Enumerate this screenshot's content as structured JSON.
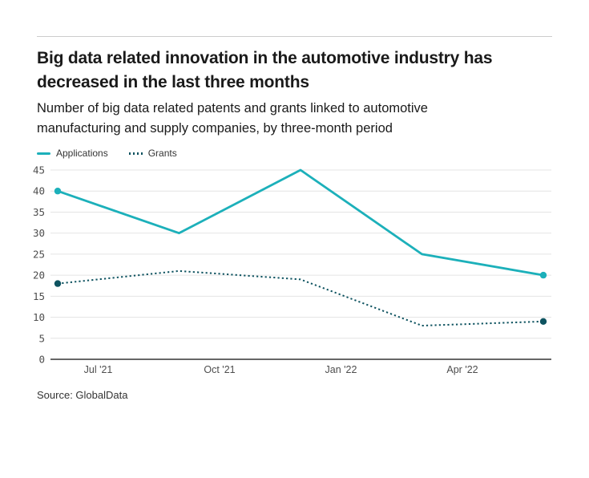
{
  "header": {
    "title": "Big data related innovation in the automotive industry has decreased in the last three months",
    "subtitle": "Number of big data related patents and grants linked to automotive manufacturing and supply companies, by three-month period"
  },
  "legend": {
    "items": [
      {
        "label": "Applications",
        "color": "#1cb0ba",
        "style": "solid"
      },
      {
        "label": "Grants",
        "color": "#0e5360",
        "style": "dotted"
      }
    ]
  },
  "chart_data": {
    "type": "line",
    "title": "Big data related innovation in the automotive industry has decreased in the last three months",
    "subtitle": "Number of big data related patents and grants linked to automotive manufacturing and supply companies, by three-month period",
    "x_axis": {
      "domain_months": [
        0,
        12
      ],
      "point_month_positions": [
        0,
        3,
        6,
        9,
        12
      ],
      "tick_month_positions": [
        1,
        4,
        7,
        10
      ],
      "tick_labels": [
        "Jul '21",
        "Oct '21",
        "Jan '22",
        "Apr '22"
      ]
    },
    "y_axis": {
      "ticks": [
        0,
        5,
        10,
        15,
        20,
        25,
        30,
        35,
        40,
        45
      ],
      "ylim": [
        0,
        45
      ]
    },
    "series": [
      {
        "name": "Applications",
        "values": [
          40,
          30,
          45,
          25,
          20
        ],
        "color": "#1cb0ba",
        "line_style": "solid",
        "end_markers": true
      },
      {
        "name": "Grants",
        "values": [
          18,
          21,
          19,
          8,
          9
        ],
        "color": "#0e5360",
        "line_style": "dotted",
        "end_markers": true
      }
    ],
    "grid": "horizontal",
    "legend_position": "top-left",
    "colors": {
      "gridline": "#e4e4e4",
      "axis_line": "#333333",
      "tick_text": "#4d4d4d"
    }
  },
  "source": {
    "text": "Source: GlobalData"
  }
}
